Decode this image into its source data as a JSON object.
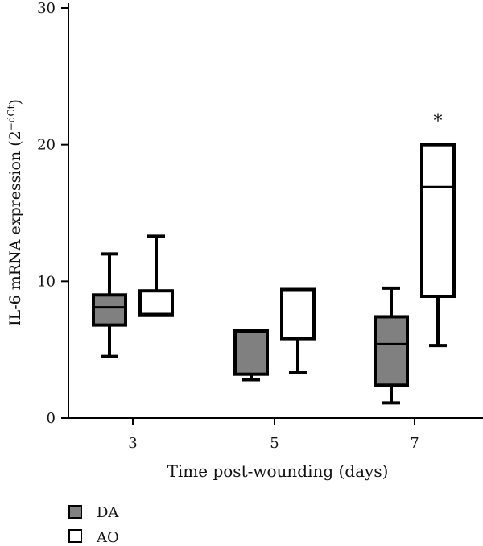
{
  "chart_data": {
    "type": "box",
    "xlabel": "Time post-wounding (days)",
    "ylabel": "IL-6 mRNA expression (2",
    "ylabel_superscript": "−dCt",
    "ylabel_close": ")",
    "ylim": [
      0,
      30
    ],
    "yticks": [
      "0",
      "10",
      "20",
      "30"
    ],
    "categories": [
      "3",
      "5",
      "7"
    ],
    "series": [
      {
        "name": "DA",
        "fill": "#808080",
        "boxes": [
          {
            "min": 4.5,
            "q1": 6.8,
            "median": 8.1,
            "q3": 9.0,
            "max": 12.0
          },
          {
            "min": 2.8,
            "q1": 3.2,
            "median": 6.3,
            "q3": 6.4,
            "max": 6.4
          },
          {
            "min": 1.1,
            "q1": 2.4,
            "median": 5.4,
            "q3": 7.4,
            "max": 9.5
          }
        ]
      },
      {
        "name": "AO",
        "fill": "#ffffff",
        "boxes": [
          {
            "min": 7.5,
            "q1": 7.5,
            "median": 7.6,
            "q3": 9.3,
            "max": 13.3
          },
          {
            "min": 3.3,
            "q1": 5.8,
            "median": 9.4,
            "q3": 9.4,
            "max": 9.4
          },
          {
            "min": 5.3,
            "q1": 8.9,
            "median": 16.9,
            "q3": 20.0,
            "max": 20.0
          }
        ]
      }
    ],
    "annotations": [
      {
        "text": "*",
        "series": "AO",
        "category": "7",
        "y": 21.3
      }
    ],
    "legend": {
      "placement": "bottom-left"
    }
  }
}
